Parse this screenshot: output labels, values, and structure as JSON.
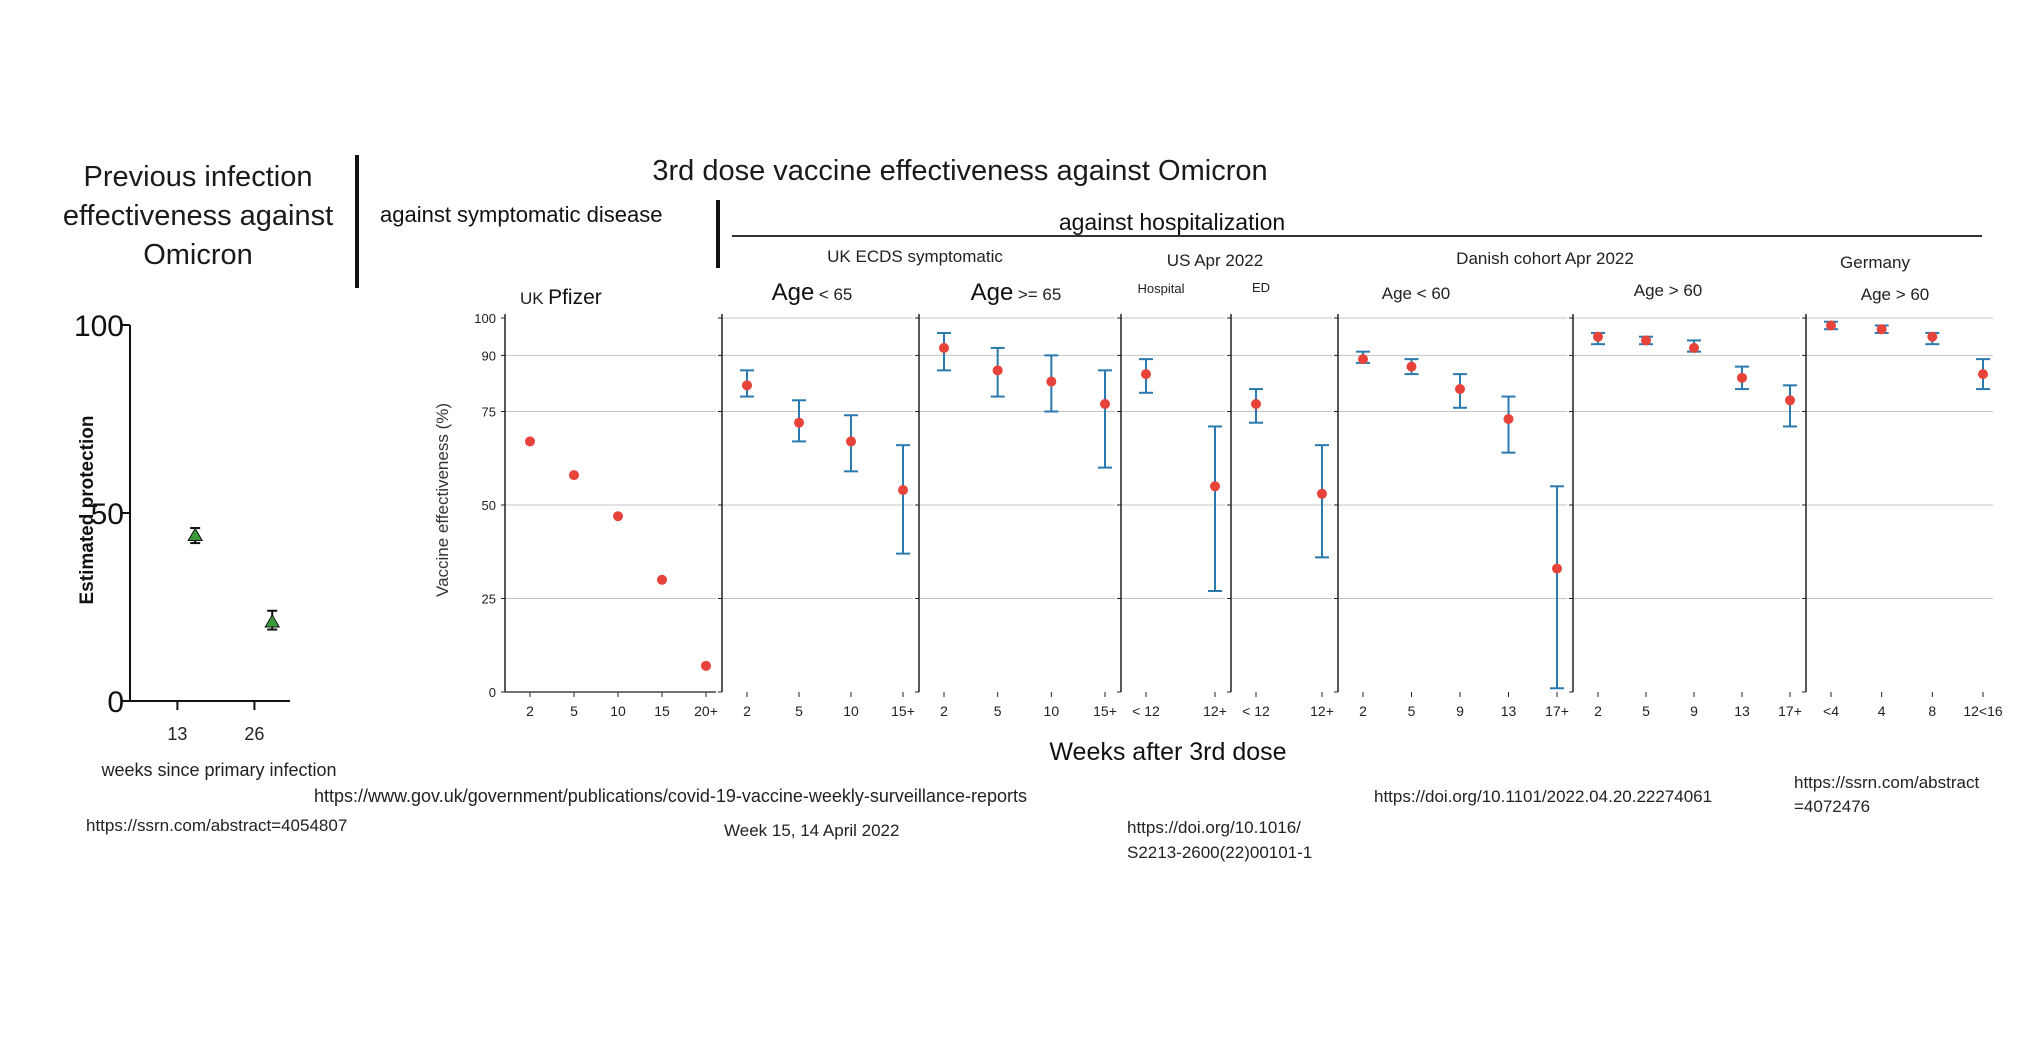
{
  "left": {
    "title": "Previous infection effectiveness against Omicron",
    "ylabel": "Estimated protection",
    "xlabel": "weeks since primary infection",
    "source": "https://ssrn.com/abstract=4054807"
  },
  "main": {
    "title": "3rd dose vaccine effectiveness against Omicron",
    "symptomatic_header": "against symptomatic disease",
    "hospitalization_header": "against hospitalization",
    "ylabel": "Vaccine effectiveness (%)",
    "xlabel": "Weeks after 3rd dose",
    "groups": {
      "uk_ecds": "UK  ECDS symptomatic",
      "us": "US Apr 2022",
      "danish": "Danish cohort Apr 2022",
      "germany": "Germany"
    },
    "sources": {
      "gov_uk": "https://www.gov.uk/government/publications/covid-19-vaccine-weekly-surveillance-reports",
      "week": "Week 15, 14 April 2022",
      "lancet_1": "https://doi.org/10.1016/",
      "lancet_2": "S2213-2600(22)00101-1",
      "danish": "https://doi.org/10.1101/2022.04.20.22274061",
      "germany_1": "https://ssrn.com/abstract",
      "germany_2": "=4072476"
    }
  },
  "chart_data": [
    {
      "type": "scatter",
      "title": "Previous infection effectiveness against Omicron",
      "ylabel": "Estimated protection",
      "xlabel": "weeks since primary infection",
      "ylim": [
        0,
        100
      ],
      "yticks": [
        "0",
        "50",
        "100"
      ],
      "xticks": [
        "13",
        "26"
      ],
      "points": [
        {
          "x": 16,
          "y": 44,
          "lo": 42,
          "hi": 46
        },
        {
          "x": 29,
          "y": 21,
          "lo": 19,
          "hi": 24
        }
      ]
    },
    {
      "type": "scatter",
      "ylabel": "Vaccine effectiveness (%)",
      "xlabel": "Weeks after 3rd dose",
      "ylim": [
        0,
        100
      ],
      "yticks": [
        "0",
        "25",
        "50",
        "75",
        "90",
        "100"
      ],
      "panels": [
        {
          "label_small": "UK",
          "label_big": "Pfizer",
          "categories": [
            "2",
            "5",
            "10",
            "15",
            "20+"
          ],
          "values": [
            67,
            58,
            47,
            30,
            7
          ],
          "lo": [
            null,
            null,
            null,
            null,
            null
          ],
          "hi": [
            null,
            null,
            null,
            null,
            null
          ]
        },
        {
          "label_big": "Age",
          "label_small": "< 65",
          "categories": [
            "2",
            "5",
            "10",
            "15+"
          ],
          "values": [
            82,
            72,
            67,
            54
          ],
          "lo": [
            79,
            67,
            59,
            37
          ],
          "hi": [
            86,
            78,
            74,
            66
          ]
        },
        {
          "label_big": "Age",
          "label_small": ">= 65",
          "categories": [
            "2",
            "5",
            "10",
            "15+"
          ],
          "values": [
            92,
            86,
            83,
            77
          ],
          "lo": [
            86,
            79,
            75,
            60
          ],
          "hi": [
            96,
            92,
            90,
            86
          ]
        },
        {
          "label_tiny": "Hospital",
          "categories": [
            "< 12",
            "12+"
          ],
          "values": [
            85,
            55
          ],
          "lo": [
            80,
            27
          ],
          "hi": [
            89,
            71
          ]
        },
        {
          "label_tiny": "ED",
          "categories": [
            "< 12",
            "12+"
          ],
          "values": [
            77,
            53
          ],
          "lo": [
            72,
            36
          ],
          "hi": [
            81,
            66
          ]
        },
        {
          "label_small": "Age < 60",
          "categories": [
            "2",
            "5",
            "9",
            "13",
            "17+"
          ],
          "values": [
            89,
            87,
            81,
            73,
            33
          ],
          "lo": [
            88,
            85,
            76,
            64,
            1
          ],
          "hi": [
            91,
            89,
            85,
            79,
            55
          ]
        },
        {
          "label_small": "Age > 60",
          "categories": [
            "2",
            "5",
            "9",
            "13",
            "17+"
          ],
          "values": [
            95,
            94,
            92,
            84,
            78
          ],
          "lo": [
            93,
            93,
            91,
            81,
            71
          ],
          "hi": [
            96,
            95,
            94,
            87,
            82
          ]
        },
        {
          "label_small": "Age > 60",
          "categories": [
            "<4",
            "4",
            "8",
            "12<16"
          ],
          "values": [
            98,
            97,
            95,
            85
          ],
          "lo": [
            97,
            96,
            93,
            81
          ],
          "hi": [
            99,
            98,
            96,
            89
          ]
        }
      ]
    }
  ]
}
